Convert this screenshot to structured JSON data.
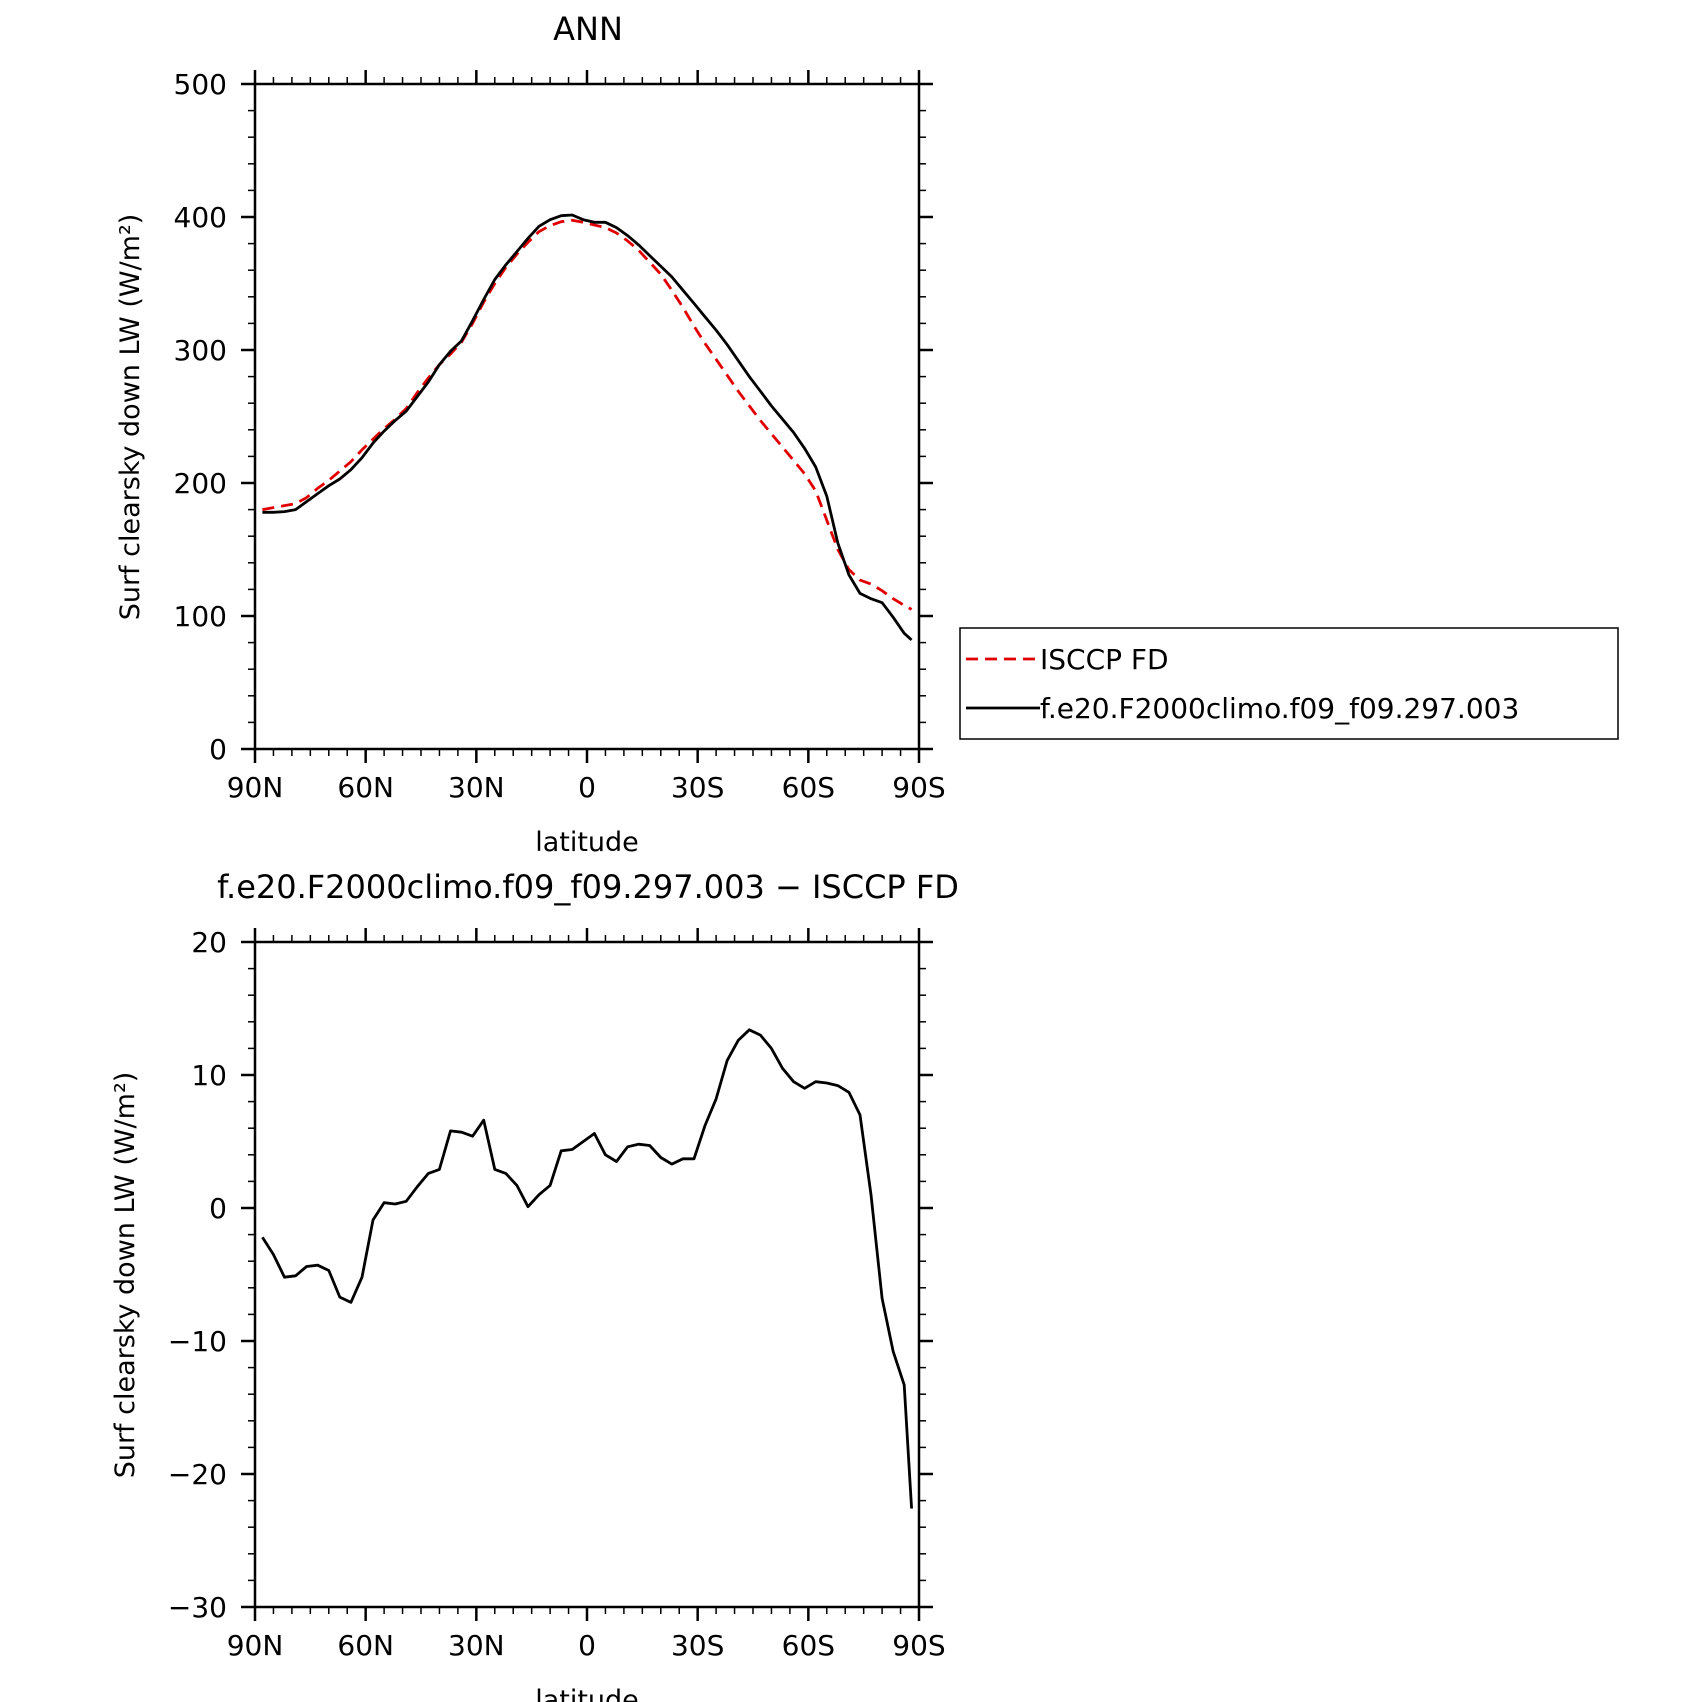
{
  "chart_data": [
    {
      "type": "line",
      "title": "ANN",
      "xlabel": "latitude",
      "ylabel": "Surf clearsky down LW (W/m²)",
      "xlim": [
        90,
        -90
      ],
      "ylim": [
        0,
        500
      ],
      "xticks": [
        {
          "value": 90,
          "label": "90N"
        },
        {
          "value": 60,
          "label": "60N"
        },
        {
          "value": 30,
          "label": "30N"
        },
        {
          "value": 0,
          "label": "0"
        },
        {
          "value": -30,
          "label": "30S"
        },
        {
          "value": -60,
          "label": "60S"
        },
        {
          "value": -90,
          "label": "90S"
        }
      ],
      "yticks": [
        {
          "value": 0,
          "label": "0"
        },
        {
          "value": 100,
          "label": "100"
        },
        {
          "value": 200,
          "label": "200"
        },
        {
          "value": 300,
          "label": "300"
        },
        {
          "value": 400,
          "label": "400"
        },
        {
          "value": 500,
          "label": "500"
        }
      ],
      "grid": false,
      "legend_position": "right",
      "x": [
        88,
        85,
        82,
        79,
        76,
        73,
        70,
        67,
        64,
        61,
        58,
        55,
        52,
        49,
        46,
        43,
        40,
        37,
        34,
        31,
        28,
        25,
        22,
        19,
        16,
        13,
        10,
        7,
        4,
        1,
        -2,
        -5,
        -8,
        -11,
        -14,
        -17,
        -20,
        -23,
        -26,
        -29,
        -32,
        -35,
        -38,
        -41,
        -44,
        -47,
        -50,
        -53,
        -56,
        -59,
        -62,
        -65,
        -68,
        -71,
        -74,
        -77,
        -80,
        -83,
        -86,
        -88
      ],
      "series": [
        {
          "name": "ISCCP FD",
          "color": "#e00000",
          "dash": "dashed",
          "values": [
            180,
            181.5,
            183,
            184.5,
            189,
            196,
            202,
            209,
            216,
            225,
            233,
            241,
            248,
            256,
            268,
            279,
            289,
            297,
            306,
            320,
            336,
            350,
            362,
            372,
            381,
            389,
            393.5,
            396.5,
            397.5,
            396,
            394,
            392,
            388,
            382,
            375,
            366,
            357,
            345,
            332,
            318,
            305,
            293,
            281,
            269,
            258,
            247,
            237,
            227,
            217,
            207,
            194,
            172,
            150,
            135,
            127,
            124,
            119,
            113,
            108,
            105
          ]
        },
        {
          "name": "f.e20.F2000climo.f09_f09.297.003",
          "color": "#000000",
          "dash": "solid",
          "values": [
            178,
            178,
            178.5,
            180,
            186,
            192,
            198,
            203,
            210,
            219,
            230,
            239,
            247,
            254,
            265,
            276,
            289,
            299,
            307,
            322,
            338,
            353,
            364,
            374,
            384,
            393,
            398,
            401,
            401.5,
            398,
            396,
            396,
            392,
            386,
            379,
            371,
            363,
            355,
            345,
            335,
            325,
            315,
            304,
            292,
            280,
            269,
            258,
            248,
            238,
            226,
            212,
            190,
            155,
            131,
            117,
            113,
            110,
            99,
            87,
            82
          ]
        }
      ]
    },
    {
      "type": "line",
      "title": "f.e20.F2000climo.f09_f09.297.003 − ISCCP FD",
      "xlabel": "latitude",
      "ylabel": "Surf clearsky down LW (W/m²)",
      "xlim": [
        90,
        -90
      ],
      "ylim": [
        -30,
        20
      ],
      "xticks": [
        {
          "value": 90,
          "label": "90N"
        },
        {
          "value": 60,
          "label": "60N"
        },
        {
          "value": 30,
          "label": "30N"
        },
        {
          "value": 0,
          "label": "0"
        },
        {
          "value": -30,
          "label": "30S"
        },
        {
          "value": -60,
          "label": "60S"
        },
        {
          "value": -90,
          "label": "90S"
        }
      ],
      "yticks": [
        {
          "value": -30,
          "label": "−30"
        },
        {
          "value": -20,
          "label": "−20"
        },
        {
          "value": -10,
          "label": "−10"
        },
        {
          "value": 0,
          "label": "0"
        },
        {
          "value": 10,
          "label": "10"
        },
        {
          "value": 20,
          "label": "20"
        }
      ],
      "grid": false,
      "x": [
        88,
        85,
        82,
        79,
        76,
        73,
        70,
        67,
        64,
        61,
        58,
        55,
        52,
        49,
        46,
        43,
        40,
        37,
        34,
        31,
        28,
        25,
        22,
        19,
        16,
        13,
        10,
        7,
        4,
        1,
        -2,
        -5,
        -8,
        -11,
        -14,
        -17,
        -20,
        -23,
        -26,
        -29,
        -32,
        -35,
        -38,
        -41,
        -44,
        -47,
        -50,
        -53,
        -56,
        -59,
        -62,
        -65,
        -68,
        -71,
        -74,
        -77,
        -80,
        -83,
        -86,
        -88
      ],
      "series": [
        {
          "name": "",
          "color": "#000000",
          "dash": "solid",
          "values": [
            -2.2,
            -3.5,
            -5.2,
            -5.1,
            -4.4,
            -4.3,
            -4.7,
            -6.7,
            -7.1,
            -5.2,
            -0.9,
            0.4,
            0.3,
            0.5,
            1.6,
            2.6,
            2.9,
            5.8,
            5.7,
            5.4,
            6.6,
            2.9,
            2.6,
            1.7,
            0.1,
            1.0,
            1.7,
            4.3,
            4.4,
            5.0,
            5.6,
            4.0,
            3.5,
            4.6,
            4.8,
            4.7,
            3.8,
            3.3,
            3.7,
            3.7,
            6.2,
            8.2,
            11.1,
            12.6,
            13.4,
            13.0,
            12.0,
            10.5,
            9.5,
            9.0,
            9.5,
            9.4,
            9.2,
            8.7,
            7.0,
            1.0,
            -6.8,
            -10.8,
            -13.3,
            -22.6
          ]
        }
      ]
    }
  ]
}
